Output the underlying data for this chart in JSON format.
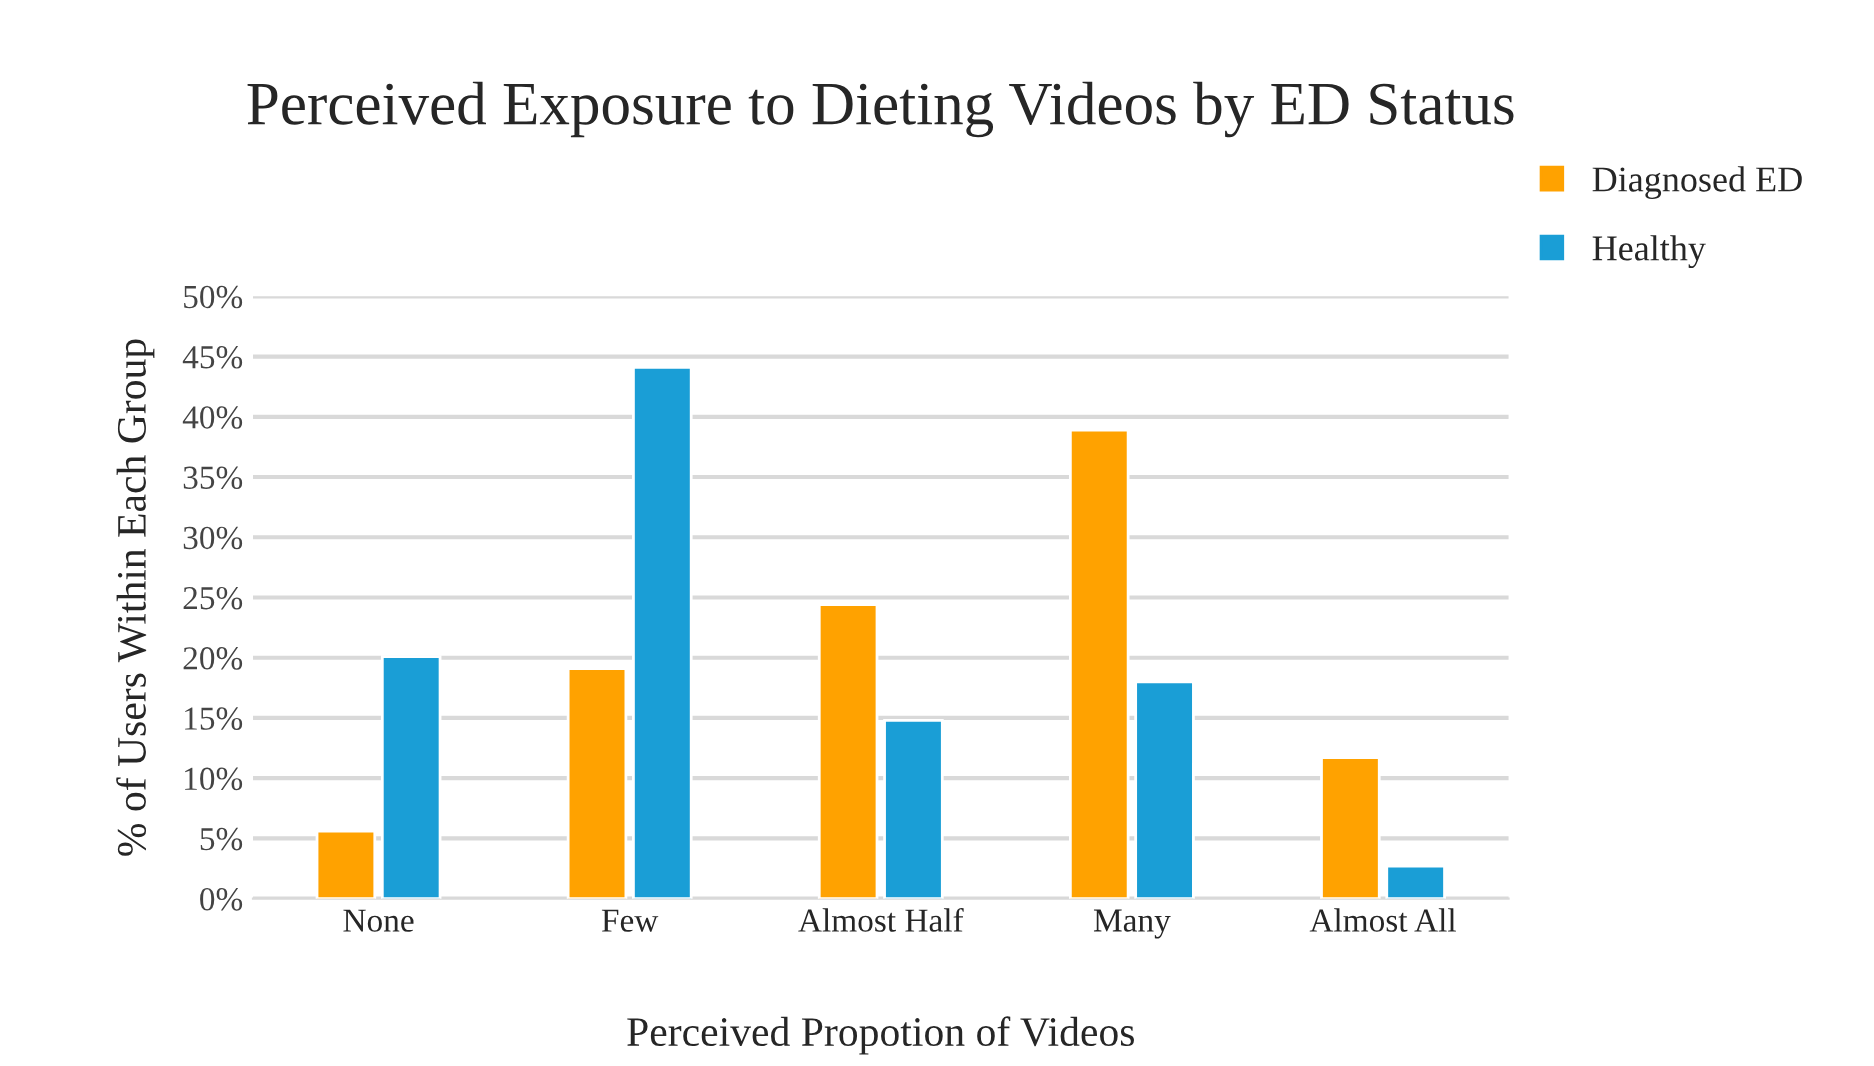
{
  "chart_data": {
    "type": "bar",
    "title": "Perceived Exposure to Dieting Videos by ED Status",
    "xlabel": "Perceived Propotion of Videos",
    "ylabel": "% of Users Within Each Group",
    "categories": [
      "None",
      "Few",
      "Almost Half",
      "Many",
      "Almost All"
    ],
    "series": [
      {
        "name": "Diagnosed ED",
        "color": "#ffa200",
        "values": [
          5.6,
          19.1,
          24.4,
          38.9,
          11.7
        ]
      },
      {
        "name": "Healthy",
        "color": "#1a9ed6",
        "values": [
          20.1,
          44.1,
          14.8,
          18.0,
          2.7
        ]
      }
    ],
    "ylim": [
      0,
      50
    ],
    "yticks": [
      {
        "value": 0,
        "label": "0%"
      },
      {
        "value": 5,
        "label": "5%"
      },
      {
        "value": 10,
        "label": "10%"
      },
      {
        "value": 15,
        "label": "15%"
      },
      {
        "value": 20,
        "label": "20%"
      },
      {
        "value": 25,
        "label": "25%"
      },
      {
        "value": 30,
        "label": "30%"
      },
      {
        "value": 35,
        "label": "35%"
      },
      {
        "value": 40,
        "label": "40%"
      },
      {
        "value": 45,
        "label": "45%"
      },
      {
        "value": 50,
        "label": "50%"
      }
    ],
    "grid": "y",
    "legend": "top right"
  }
}
